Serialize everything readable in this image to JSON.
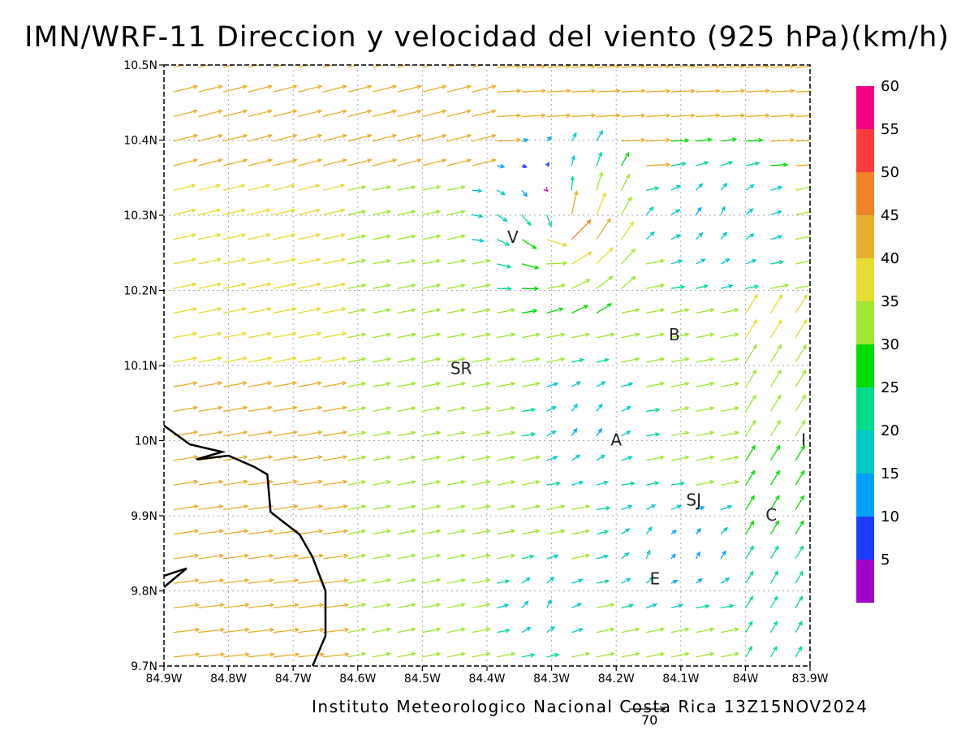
{
  "title": "IMN/WRF-11 Direccion y velocidad del viento (925 hPa)(km/h)",
  "footer": "Instituto Meteorologico Nacional Costa Rica 13Z15NOV2024",
  "reference_vector": {
    "label": "70",
    "speed_kmh": 70
  },
  "map": {
    "lon_range": [
      -84.9,
      -83.9
    ],
    "lat_range": [
      9.7,
      10.5
    ],
    "x_ticks": [
      "84.9W",
      "84.8W",
      "84.7W",
      "84.6W",
      "84.5W",
      "84.4W",
      "84.3W",
      "84.2W",
      "84.1W",
      "84W",
      "83.9W"
    ],
    "y_ticks": [
      "9.7N",
      "9.8N",
      "9.9N",
      "10N",
      "10.1N",
      "10.2N",
      "10.3N",
      "10.4N",
      "10.5N"
    ],
    "grid": true,
    "coastline": [
      [
        -84.9,
        10.02
      ],
      [
        -84.86,
        9.995
      ],
      [
        -84.81,
        9.985
      ],
      [
        -84.85,
        9.975
      ],
      [
        -84.8,
        9.98
      ],
      [
        -84.76,
        9.965
      ],
      [
        -84.74,
        9.955
      ],
      [
        -84.735,
        9.905
      ],
      [
        -84.72,
        9.895
      ],
      [
        -84.69,
        9.875
      ],
      [
        -84.67,
        9.845
      ],
      [
        -84.65,
        9.8
      ],
      [
        -84.65,
        9.74
      ],
      [
        -84.67,
        9.7
      ]
    ],
    "coastline2": [
      [
        -84.9,
        9.805
      ],
      [
        -84.865,
        9.83
      ],
      [
        -84.9,
        9.82
      ]
    ],
    "stations": [
      {
        "label": "V",
        "lon": -84.36,
        "lat": 10.27
      },
      {
        "label": "B",
        "lon": -84.11,
        "lat": 10.14
      },
      {
        "label": "SR",
        "lon": -84.44,
        "lat": 10.095
      },
      {
        "label": "A",
        "lon": -84.2,
        "lat": 10.0
      },
      {
        "label": "I",
        "lon": -83.91,
        "lat": 10.0
      },
      {
        "label": "SJ",
        "lon": -84.08,
        "lat": 9.92
      },
      {
        "label": "C",
        "lon": -83.96,
        "lat": 9.9
      },
      {
        "label": "E",
        "lon": -84.14,
        "lat": 9.815
      }
    ]
  },
  "legend": {
    "labels": [
      "5",
      "10",
      "15",
      "20",
      "25",
      "30",
      "35",
      "40",
      "45",
      "50",
      "55",
      "60"
    ],
    "colors": [
      "#a000c8",
      "#1e3cff",
      "#00a0ff",
      "#00c8c8",
      "#00dc8c",
      "#00dc00",
      "#a0e632",
      "#e6dc32",
      "#e6af2d",
      "#f08228",
      "#fa3c3c",
      "#f00082"
    ]
  }
}
